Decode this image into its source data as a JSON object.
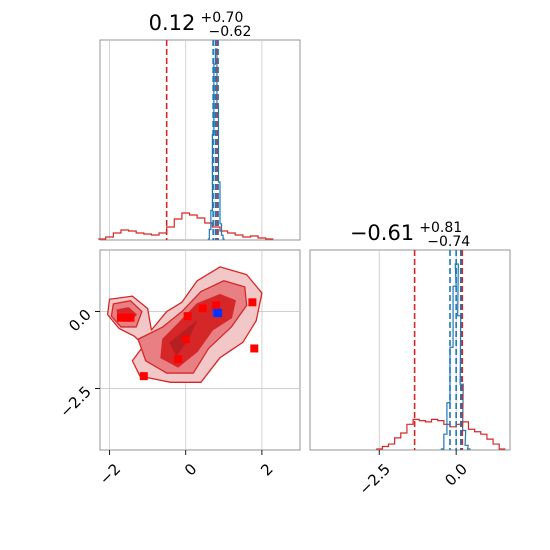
{
  "figure": {
    "type": "corner-plot",
    "colors": {
      "red": "#d62728",
      "blue": "#1f77b4",
      "grid": "#c8c8c8",
      "frame": "#8a8a8a"
    }
  },
  "chart_data": [
    {
      "type": "histogram",
      "panel": "p1",
      "title": {
        "main": "0.12",
        "sup": "+0.70",
        "sub": "−0.62"
      },
      "x_range": [
        -2.25,
        3.0
      ],
      "grid_x": [
        -2,
        0,
        2
      ],
      "red_quantiles": [
        -0.5,
        0.82
      ],
      "blue_quantiles": [
        0.72,
        0.78,
        0.85
      ],
      "red_hist": [
        {
          "x": -2.2,
          "y": 0.0
        },
        {
          "x": -2.0,
          "y": 0.01
        },
        {
          "x": -1.8,
          "y": 0.03
        },
        {
          "x": -1.6,
          "y": 0.045
        },
        {
          "x": -1.4,
          "y": 0.04
        },
        {
          "x": -1.2,
          "y": 0.03
        },
        {
          "x": -1.0,
          "y": 0.025
        },
        {
          "x": -0.8,
          "y": 0.02
        },
        {
          "x": -0.6,
          "y": 0.03
        },
        {
          "x": -0.4,
          "y": 0.06
        },
        {
          "x": -0.2,
          "y": 0.1
        },
        {
          "x": 0.0,
          "y": 0.13
        },
        {
          "x": 0.2,
          "y": 0.12
        },
        {
          "x": 0.4,
          "y": 0.105
        },
        {
          "x": 0.6,
          "y": 0.08
        },
        {
          "x": 0.8,
          "y": 0.06
        },
        {
          "x": 1.0,
          "y": 0.04
        },
        {
          "x": 1.2,
          "y": 0.03
        },
        {
          "x": 1.4,
          "y": 0.02
        },
        {
          "x": 1.6,
          "y": 0.01
        },
        {
          "x": 1.8,
          "y": 0.015
        },
        {
          "x": 2.0,
          "y": 0.005
        },
        {
          "x": 2.2,
          "y": 0.0
        }
      ],
      "blue_hist": [
        {
          "x": 0.6,
          "y": 0.0
        },
        {
          "x": 0.64,
          "y": 0.05
        },
        {
          "x": 0.68,
          "y": 0.15
        },
        {
          "x": 0.72,
          "y": 0.55
        },
        {
          "x": 0.76,
          "y": 0.92
        },
        {
          "x": 0.8,
          "y": 1.0
        },
        {
          "x": 0.84,
          "y": 0.7
        },
        {
          "x": 0.88,
          "y": 0.3
        },
        {
          "x": 0.92,
          "y": 0.08
        },
        {
          "x": 0.96,
          "y": 0.02
        },
        {
          "x": 1.0,
          "y": 0.0
        }
      ]
    },
    {
      "type": "contour",
      "panel": "p3",
      "x_range": [
        -2.25,
        3.0
      ],
      "y_range": [
        -4.5,
        2.0
      ],
      "grid_x": [
        -2,
        0,
        2
      ],
      "grid_y": [
        0.0,
        -2.5
      ],
      "x_ticks": [
        "−2",
        "0",
        "2"
      ],
      "y_ticks": [
        "0.0",
        "−2.5"
      ],
      "contour_levels": [
        {
          "level": "outer",
          "fill": "#f2c7c8",
          "points": [
            [
              -2.0,
              0.4
            ],
            [
              -1.4,
              0.5
            ],
            [
              -1.0,
              0.1
            ],
            [
              -0.9,
              -0.6
            ],
            [
              -0.5,
              0.0
            ],
            [
              -0.1,
              0.3
            ],
            [
              0.3,
              1.0
            ],
            [
              0.9,
              1.45
            ],
            [
              1.6,
              1.2
            ],
            [
              2.0,
              0.6
            ],
            [
              1.85,
              -0.3
            ],
            [
              1.5,
              -1.0
            ],
            [
              0.9,
              -1.5
            ],
            [
              0.4,
              -2.3
            ],
            [
              -0.4,
              -2.3
            ],
            [
              -1.2,
              -2.1
            ],
            [
              -1.4,
              -1.6
            ],
            [
              -1.1,
              -1.1
            ],
            [
              -1.35,
              -0.8
            ],
            [
              -1.75,
              -0.55
            ],
            [
              -2.05,
              -0.1
            ]
          ]
        },
        {
          "level": "mid",
          "fill": "#e87f82",
          "points": [
            [
              -1.9,
              0.25
            ],
            [
              -1.45,
              0.35
            ],
            [
              -1.15,
              0.0
            ],
            [
              -1.3,
              -0.5
            ],
            [
              -1.7,
              -0.5
            ],
            [
              -1.95,
              -0.15
            ]
          ]
        },
        {
          "level": "mid2",
          "fill": "#e87f82",
          "points": [
            [
              -1.25,
              -0.9
            ],
            [
              -0.6,
              -0.5
            ],
            [
              -0.1,
              0.0
            ],
            [
              0.4,
              0.65
            ],
            [
              1.0,
              1.0
            ],
            [
              1.55,
              0.8
            ],
            [
              1.6,
              0.2
            ],
            [
              1.2,
              -0.5
            ],
            [
              0.6,
              -1.2
            ],
            [
              0.2,
              -2.0
            ],
            [
              -0.5,
              -2.0
            ],
            [
              -1.05,
              -1.6
            ]
          ]
        },
        {
          "level": "inner",
          "fill": "#d62728",
          "points": [
            [
              -0.6,
              -0.9
            ],
            [
              -0.2,
              -0.4
            ],
            [
              0.3,
              0.25
            ],
            [
              0.9,
              0.55
            ],
            [
              1.3,
              0.35
            ],
            [
              1.2,
              -0.2
            ],
            [
              0.7,
              -0.6
            ],
            [
              0.3,
              -1.3
            ],
            [
              -0.2,
              -1.8
            ],
            [
              -0.65,
              -1.5
            ]
          ]
        },
        {
          "level": "inner2",
          "fill": "#d62728",
          "points": [
            [
              -1.8,
              0.05
            ],
            [
              -1.5,
              0.12
            ],
            [
              -1.3,
              -0.1
            ],
            [
              -1.45,
              -0.3
            ],
            [
              -1.75,
              -0.3
            ]
          ]
        },
        {
          "level": "core",
          "fill": "#b51f22",
          "points": [
            [
              -0.45,
              -1.0
            ],
            [
              -0.05,
              -0.6
            ],
            [
              0.35,
              -0.2
            ],
            [
              0.1,
              -0.9
            ],
            [
              -0.25,
              -1.5
            ]
          ]
        },
        {
          "level": "blue-core",
          "fill": "#1f3fff",
          "points": [
            [
              0.68,
              0.1
            ],
            [
              0.95,
              0.15
            ],
            [
              0.95,
              -0.2
            ],
            [
              0.7,
              -0.2
            ]
          ]
        }
      ],
      "red_squares": [
        [
          -1.7,
          -0.2
        ],
        [
          -1.55,
          -0.2
        ],
        [
          -1.45,
          -0.2
        ],
        [
          -1.1,
          -2.1
        ],
        [
          0.05,
          -0.15
        ],
        [
          0.0,
          -0.9
        ],
        [
          -0.2,
          -1.55
        ],
        [
          0.45,
          0.1
        ],
        [
          0.8,
          0.2
        ],
        [
          1.75,
          0.3
        ],
        [
          1.8,
          -1.2
        ]
      ],
      "blue_squares": [
        [
          0.85,
          -0.05
        ]
      ]
    },
    {
      "type": "histogram",
      "panel": "p4",
      "title": {
        "main": "−0.61",
        "sup": "+0.81",
        "sub": "−0.74"
      },
      "x_range": [
        -4.75,
        1.75
      ],
      "grid_x": [
        -2.5,
        0.0
      ],
      "x_ticks": [
        "−2.5",
        "0.0"
      ],
      "red_quantiles": [
        -1.35,
        0.2
      ],
      "blue_quantiles": [
        -0.2,
        0.0,
        0.15
      ],
      "red_hist": [
        {
          "x": -2.5,
          "y": 0.0
        },
        {
          "x": -2.3,
          "y": 0.01
        },
        {
          "x": -2.1,
          "y": 0.02
        },
        {
          "x": -1.9,
          "y": 0.045
        },
        {
          "x": -1.7,
          "y": 0.065
        },
        {
          "x": -1.5,
          "y": 0.1
        },
        {
          "x": -1.3,
          "y": 0.12
        },
        {
          "x": -1.1,
          "y": 0.115
        },
        {
          "x": -0.9,
          "y": 0.11
        },
        {
          "x": -0.7,
          "y": 0.12
        },
        {
          "x": -0.5,
          "y": 0.115
        },
        {
          "x": -0.3,
          "y": 0.1
        },
        {
          "x": -0.1,
          "y": 0.09
        },
        {
          "x": 0.1,
          "y": 0.1
        },
        {
          "x": 0.3,
          "y": 0.11
        },
        {
          "x": 0.5,
          "y": 0.08
        },
        {
          "x": 0.7,
          "y": 0.07
        },
        {
          "x": 0.9,
          "y": 0.06
        },
        {
          "x": 1.1,
          "y": 0.04
        },
        {
          "x": 1.3,
          "y": 0.02
        },
        {
          "x": 1.5,
          "y": 0.0
        }
      ],
      "blue_hist": [
        {
          "x": -0.45,
          "y": 0.0
        },
        {
          "x": -0.35,
          "y": 0.08
        },
        {
          "x": -0.25,
          "y": 0.25
        },
        {
          "x": -0.15,
          "y": 0.55
        },
        {
          "x": -0.05,
          "y": 0.88
        },
        {
          "x": 0.02,
          "y": 1.0
        },
        {
          "x": 0.1,
          "y": 0.72
        },
        {
          "x": 0.18,
          "y": 0.35
        },
        {
          "x": 0.26,
          "y": 0.1
        },
        {
          "x": 0.34,
          "y": 0.02
        },
        {
          "x": 0.42,
          "y": 0.0
        }
      ]
    }
  ]
}
